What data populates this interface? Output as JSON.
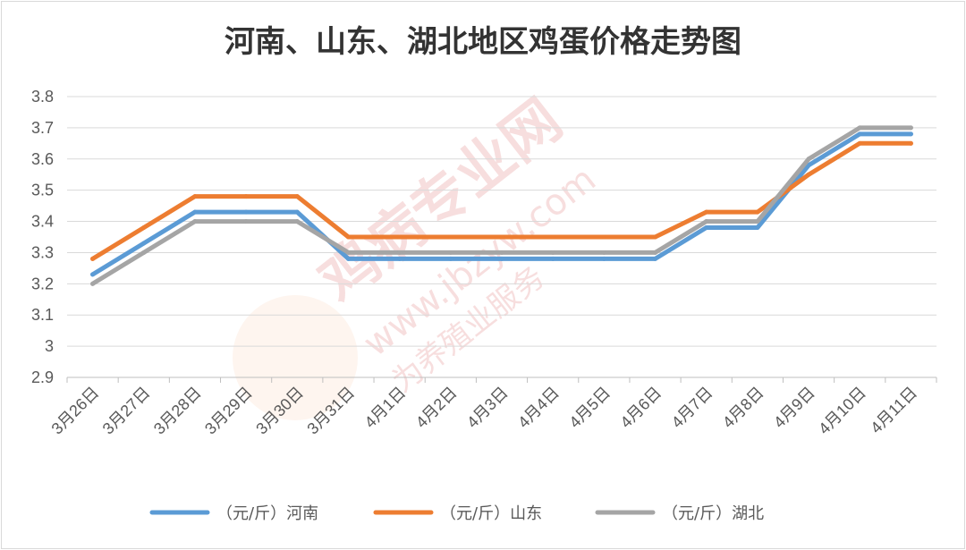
{
  "chart_data": {
    "type": "line",
    "title": "河南、山东、湖北地区鸡蛋价格走势图",
    "categories": [
      "3月26日",
      "3月27日",
      "3月28日",
      "3月29日",
      "3月30日",
      "3月31日",
      "4月1日",
      "4月2日",
      "4月3日",
      "4月4日",
      "4月5日",
      "4月6日",
      "4月7日",
      "4月8日",
      "4月9日",
      "4月10日",
      "4月11日"
    ],
    "ylim": [
      2.9,
      3.8
    ],
    "yticks": [
      "3.8",
      "3.7",
      "3.6",
      "3.5",
      "3.4",
      "3.3",
      "3.2",
      "3.1",
      "3",
      "2.9"
    ],
    "grid": true,
    "legend_position": "bottom",
    "series": [
      {
        "name": "（元/斤）河南",
        "color": "#5b9bd5",
        "values": [
          3.23,
          3.33,
          3.43,
          3.43,
          3.43,
          3.28,
          3.28,
          3.28,
          3.28,
          3.28,
          3.28,
          3.28,
          3.38,
          3.38,
          3.58,
          3.68,
          3.68
        ]
      },
      {
        "name": "（元/斤）山东",
        "color": "#ed7d31",
        "values": [
          3.28,
          3.38,
          3.48,
          3.48,
          3.48,
          3.35,
          3.35,
          3.35,
          3.35,
          3.35,
          3.35,
          3.35,
          3.43,
          3.43,
          3.55,
          3.65,
          3.65
        ]
      },
      {
        "name": "（元/斤）湖北",
        "color": "#a5a5a5",
        "values": [
          3.2,
          3.3,
          3.4,
          3.4,
          3.4,
          3.3,
          3.3,
          3.3,
          3.3,
          3.3,
          3.3,
          3.3,
          3.4,
          3.4,
          3.6,
          3.7,
          3.7
        ]
      }
    ],
    "watermark": [
      "鸡病专业网",
      "www.jbzyw.com",
      "为养殖业服务"
    ]
  }
}
